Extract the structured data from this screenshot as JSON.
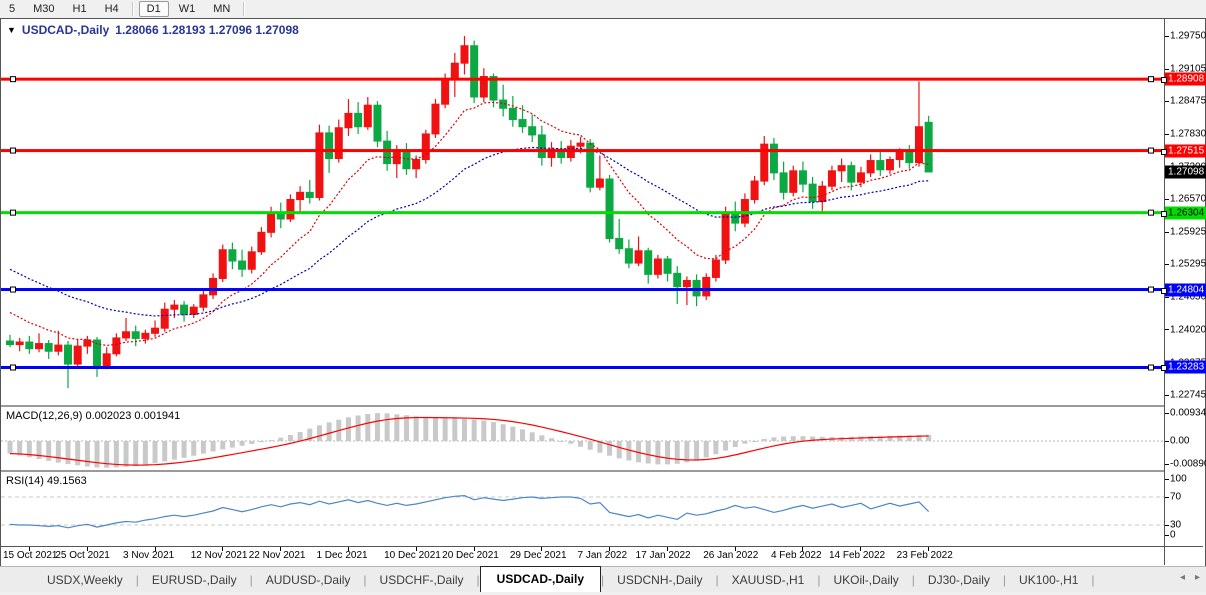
{
  "toolbar": {
    "timeframes": [
      {
        "label": "5",
        "active": false
      },
      {
        "label": "M30",
        "active": false
      },
      {
        "label": "H1",
        "active": false
      },
      {
        "label": "H4",
        "active": false
      },
      {
        "label": "D1",
        "active": true
      },
      {
        "label": "W1",
        "active": false
      },
      {
        "label": "MN",
        "active": false
      }
    ]
  },
  "chart": {
    "title": "USDCAD-,Daily",
    "ohlc": "1.28066 1.28193 1.27096 1.27098",
    "open": "1.28066",
    "high": "1.28193",
    "low": "1.27096",
    "close": "1.27098"
  },
  "price_axis": {
    "ticks": [
      "1.29750",
      "1.29105",
      "1.28475",
      "1.27830",
      "1.27200",
      "1.26570",
      "1.25925",
      "1.25295",
      "1.24650",
      "1.24020",
      "1.23375",
      "1.22745"
    ],
    "current_price_label": {
      "text": "1.27098",
      "bg": "#000000",
      "fg": "#ffffff"
    }
  },
  "hlines": [
    {
      "price": 1.28908,
      "label": "1.28908",
      "color": "#ff0000",
      "label_fg": "#ffffff"
    },
    {
      "price": 1.27515,
      "label": "1.27515",
      "color": "#ff0000",
      "label_fg": "#ffffff"
    },
    {
      "price": 1.26304,
      "label": "1.26304",
      "color": "#00dd00",
      "label_fg": "#000000"
    },
    {
      "price": 1.24804,
      "label": "1.24804",
      "color": "#0000ff",
      "label_fg": "#ffffff"
    },
    {
      "price": 1.23283,
      "label": "1.23283",
      "color": "#0000ff",
      "label_fg": "#ffffff"
    }
  ],
  "macd_panel": {
    "label": "MACD(12,26,9) 0.002023 0.001941",
    "axis": [
      "0.009345",
      "0.00",
      "-0.00890"
    ],
    "values": {
      "macd": "0.002023",
      "signal": "0.001941"
    }
  },
  "rsi_panel": {
    "label": "RSI(14) 49.1563",
    "axis": [
      "100",
      "70",
      "30",
      "0"
    ],
    "levels": [
      70,
      30
    ],
    "value": "49.1563"
  },
  "date_axis": {
    "labels": [
      "15 Oct 2021",
      "25 Oct 2021",
      "3 Nov 2021",
      "12 Nov 2021",
      "22 Nov 2021",
      "1 Dec 2021",
      "10 Dec 2021",
      "20 Dec 2021",
      "29 Dec 2021",
      "7 Jan 2022",
      "17 Jan 2022",
      "26 Jan 2022",
      "4 Feb 2022",
      "14 Feb 2022",
      "23 Feb 2022"
    ],
    "bar_indices": [
      2,
      8,
      15,
      22,
      28,
      35,
      42,
      48,
      55,
      62,
      68,
      75,
      82,
      88,
      95
    ]
  },
  "tabs": [
    {
      "label": "USDX,Weekly",
      "active": false
    },
    {
      "label": "EURUSD-,Daily",
      "active": false
    },
    {
      "label": "AUDUSD-,Daily",
      "active": false
    },
    {
      "label": "USDCHF-,Daily",
      "active": false
    },
    {
      "label": "USDCAD-,Daily",
      "active": true
    },
    {
      "label": "USDCNH-,Daily",
      "active": false
    },
    {
      "label": "XAUUSD-,H1",
      "active": false
    },
    {
      "label": "UKOil-,Daily",
      "active": false
    },
    {
      "label": "DJ30-,Daily",
      "active": false
    },
    {
      "label": "UK100-,H1",
      "active": false
    }
  ],
  "tab_scroll": {
    "left": "◂",
    "right": "▸"
  },
  "colors": {
    "bull": "#f01212",
    "bear": "#0ca843",
    "ma_fast": "#e00000",
    "ma_slow": "#0000b0",
    "macd_hist": "#c9c9c9",
    "macd_signal": "#ff0000",
    "macd_zero": "#b4b4b4",
    "rsi_line": "#4a86c8",
    "rsi_level": "#c8c8c8",
    "axis_text": "#000000"
  },
  "chart_data": {
    "type": "candlestick",
    "symbol": "USDCAD-",
    "period": "Daily",
    "price_range_top": 1.29945,
    "price_range_bottom": 1.2259,
    "candles_ohlc": [
      [
        1.238,
        1.2392,
        1.2368,
        1.2373
      ],
      [
        1.2373,
        1.2386,
        1.236,
        1.2378
      ],
      [
        1.2378,
        1.239,
        1.2355,
        1.2365
      ],
      [
        1.2365,
        1.2395,
        1.2358,
        1.2375
      ],
      [
        1.2375,
        1.2382,
        1.2345,
        1.236
      ],
      [
        1.236,
        1.24,
        1.2352,
        1.2372
      ],
      [
        1.2372,
        1.238,
        1.2288,
        1.2335
      ],
      [
        1.2335,
        1.2382,
        1.233,
        1.237
      ],
      [
        1.237,
        1.239,
        1.2355,
        1.2382
      ],
      [
        1.2382,
        1.2388,
        1.231,
        1.2332
      ],
      [
        1.2332,
        1.2368,
        1.2325,
        1.2355
      ],
      [
        1.2355,
        1.2395,
        1.235,
        1.2386
      ],
      [
        1.2386,
        1.2425,
        1.238,
        1.2398
      ],
      [
        1.2398,
        1.241,
        1.237,
        1.2385
      ],
      [
        1.2385,
        1.2402,
        1.2375,
        1.2395
      ],
      [
        1.2395,
        1.242,
        1.2388,
        1.2405
      ],
      [
        1.2405,
        1.2455,
        1.2398,
        1.2442
      ],
      [
        1.2442,
        1.246,
        1.2425,
        1.245
      ],
      [
        1.245,
        1.2458,
        1.2418,
        1.2432
      ],
      [
        1.2432,
        1.2452,
        1.2425,
        1.2446
      ],
      [
        1.2446,
        1.248,
        1.2438,
        1.247
      ],
      [
        1.247,
        1.2512,
        1.2462,
        1.2502
      ],
      [
        1.2502,
        1.2568,
        1.2495,
        1.2558
      ],
      [
        1.2558,
        1.2572,
        1.252,
        1.2536
      ],
      [
        1.2536,
        1.2558,
        1.2505,
        1.252
      ],
      [
        1.252,
        1.2564,
        1.2512,
        1.2554
      ],
      [
        1.2554,
        1.2602,
        1.2548,
        1.2592
      ],
      [
        1.2592,
        1.2642,
        1.2582,
        1.263
      ],
      [
        1.263,
        1.265,
        1.26,
        1.2618
      ],
      [
        1.2618,
        1.2666,
        1.2612,
        1.2656
      ],
      [
        1.2656,
        1.2682,
        1.263,
        1.267
      ],
      [
        1.267,
        1.2694,
        1.2648,
        1.266
      ],
      [
        1.266,
        1.2802,
        1.2654,
        1.2786
      ],
      [
        1.2786,
        1.28,
        1.2708,
        1.2736
      ],
      [
        1.2736,
        1.2812,
        1.2728,
        1.2796
      ],
      [
        1.2796,
        1.2852,
        1.278,
        1.2824
      ],
      [
        1.2824,
        1.2846,
        1.2784,
        1.2798
      ],
      [
        1.2798,
        1.2856,
        1.2792,
        1.284
      ],
      [
        1.284,
        1.2848,
        1.2758,
        1.277
      ],
      [
        1.277,
        1.279,
        1.2712,
        1.2726
      ],
      [
        1.2726,
        1.2762,
        1.2698,
        1.2748
      ],
      [
        1.2748,
        1.2766,
        1.2704,
        1.2716
      ],
      [
        1.2716,
        1.2742,
        1.2698,
        1.2734
      ],
      [
        1.2734,
        1.2792,
        1.2726,
        1.2784
      ],
      [
        1.2784,
        1.2852,
        1.2776,
        1.2842
      ],
      [
        1.2842,
        1.2902,
        1.2834,
        1.289
      ],
      [
        1.289,
        1.2942,
        1.2856,
        1.2922
      ],
      [
        1.2922,
        1.2975,
        1.29,
        1.2956
      ],
      [
        1.2956,
        1.2966,
        1.2844,
        1.2856
      ],
      [
        1.2856,
        1.2912,
        1.2846,
        1.2896
      ],
      [
        1.2896,
        1.2902,
        1.2836,
        1.285
      ],
      [
        1.285,
        1.288,
        1.2818,
        1.2834
      ],
      [
        1.2834,
        1.2858,
        1.2798,
        1.2812
      ],
      [
        1.2812,
        1.284,
        1.2786,
        1.2798
      ],
      [
        1.2798,
        1.2822,
        1.2768,
        1.2782
      ],
      [
        1.2782,
        1.28,
        1.2722,
        1.2738
      ],
      [
        1.2738,
        1.2768,
        1.272,
        1.2754
      ],
      [
        1.2754,
        1.277,
        1.2726,
        1.2738
      ],
      [
        1.2738,
        1.2772,
        1.273,
        1.276
      ],
      [
        1.276,
        1.2778,
        1.2746,
        1.2766
      ],
      [
        1.2766,
        1.2774,
        1.267,
        1.268
      ],
      [
        1.268,
        1.2742,
        1.2674,
        1.2696
      ],
      [
        1.2696,
        1.2704,
        1.2572,
        1.258
      ],
      [
        1.258,
        1.2618,
        1.255,
        1.256
      ],
      [
        1.256,
        1.2578,
        1.2522,
        1.2532
      ],
      [
        1.2532,
        1.2584,
        1.2526,
        1.2556
      ],
      [
        1.2556,
        1.2562,
        1.2492,
        1.251
      ],
      [
        1.251,
        1.2548,
        1.2502,
        1.254
      ],
      [
        1.254,
        1.2546,
        1.2496,
        1.2512
      ],
      [
        1.2512,
        1.2526,
        1.2452,
        1.2486
      ],
      [
        1.2486,
        1.2506,
        1.245,
        1.2498
      ],
      [
        1.2498,
        1.251,
        1.2448,
        1.2468
      ],
      [
        1.2468,
        1.2512,
        1.246,
        1.2504
      ],
      [
        1.2504,
        1.2548,
        1.2496,
        1.2538
      ],
      [
        1.2538,
        1.2642,
        1.253,
        1.263
      ],
      [
        1.263,
        1.2652,
        1.2594,
        1.261
      ],
      [
        1.261,
        1.2668,
        1.2602,
        1.2656
      ],
      [
        1.2656,
        1.2702,
        1.2648,
        1.2692
      ],
      [
        1.2692,
        1.278,
        1.2684,
        1.2764
      ],
      [
        1.2764,
        1.2776,
        1.2694,
        1.2708
      ],
      [
        1.2708,
        1.273,
        1.2656,
        1.267
      ],
      [
        1.267,
        1.2722,
        1.2662,
        1.2712
      ],
      [
        1.2712,
        1.273,
        1.267,
        1.2686
      ],
      [
        1.2686,
        1.27,
        1.2638,
        1.2652
      ],
      [
        1.2652,
        1.2692,
        1.2628,
        1.2682
      ],
      [
        1.2682,
        1.2722,
        1.2674,
        1.2712
      ],
      [
        1.2712,
        1.2736,
        1.269,
        1.2722
      ],
      [
        1.2722,
        1.273,
        1.2674,
        1.269
      ],
      [
        1.269,
        1.272,
        1.268,
        1.2708
      ],
      [
        1.2708,
        1.2744,
        1.27,
        1.2732
      ],
      [
        1.2732,
        1.275,
        1.2702,
        1.2714
      ],
      [
        1.2714,
        1.274,
        1.2706,
        1.2734
      ],
      [
        1.2734,
        1.2756,
        1.2718,
        1.2748
      ],
      [
        1.2748,
        1.2762,
        1.2716,
        1.2728
      ],
      [
        1.2728,
        1.2886,
        1.272,
        1.2798
      ],
      [
        1.28066,
        1.28193,
        1.27096,
        1.27098
      ]
    ],
    "ma_fast_period": 11,
    "ma_fast_seed": 1.2448,
    "ma_slow_period": 30,
    "ma_slow_seed": 1.253,
    "macd_hist": [
      -0.0042,
      -0.0048,
      -0.0054,
      -0.006,
      -0.0066,
      -0.0072,
      -0.0077,
      -0.0081,
      -0.0085,
      -0.0088,
      -0.0089,
      -0.0088,
      -0.0086,
      -0.0083,
      -0.0079,
      -0.0074,
      -0.0068,
      -0.0062,
      -0.0056,
      -0.0049,
      -0.0042,
      -0.0035,
      -0.0028,
      -0.0022,
      -0.0016,
      -0.001,
      -0.0004,
      0.0003,
      0.0011,
      0.002,
      0.003,
      0.0041,
      0.0052,
      0.0062,
      0.0071,
      0.0079,
      0.0085,
      0.009,
      0.0093,
      0.0092,
      0.0089,
      0.0086,
      0.0082,
      0.0079,
      0.0077,
      0.0076,
      0.0075,
      0.0074,
      0.0072,
      0.0068,
      0.0063,
      0.0056,
      0.0048,
      0.0039,
      0.0029,
      0.0019,
      0.0009,
      0.0,
      -0.0009,
      -0.0019,
      -0.0029,
      -0.0039,
      -0.0049,
      -0.0058,
      -0.0065,
      -0.0071,
      -0.0075,
      -0.0078,
      -0.0078,
      -0.0076,
      -0.0071,
      -0.0064,
      -0.0055,
      -0.0044,
      -0.0032,
      -0.002,
      -0.0009,
      0.0,
      0.0007,
      0.0012,
      0.0015,
      0.0016,
      0.0016,
      0.0015,
      0.0014,
      0.0013,
      0.0013,
      0.0014,
      0.0015,
      0.0016,
      0.0016,
      0.0017,
      0.0018,
      0.0019,
      0.002,
      0.00202
    ],
    "macd_signal_period": 9,
    "rsi": [
      31,
      30,
      30,
      29,
      28,
      29,
      26,
      29,
      31,
      27,
      30,
      33,
      35,
      34,
      37,
      39,
      42,
      44,
      42,
      44,
      47,
      50,
      55,
      52,
      49,
      52,
      56,
      59,
      56,
      60,
      62,
      59,
      64,
      60,
      63,
      66,
      62,
      65,
      61,
      58,
      61,
      58,
      60,
      63,
      66,
      69,
      71,
      72,
      66,
      69,
      67,
      65,
      67,
      69,
      70,
      68,
      69,
      70,
      70,
      68,
      60,
      62,
      48,
      45,
      42,
      45,
      40,
      44,
      41,
      38,
      47,
      44,
      46,
      50,
      53,
      58,
      54,
      56,
      52,
      48,
      51,
      55,
      58,
      54,
      57,
      60,
      55,
      58,
      61,
      53,
      57,
      61,
      57,
      60,
      63,
      49.16
    ]
  }
}
